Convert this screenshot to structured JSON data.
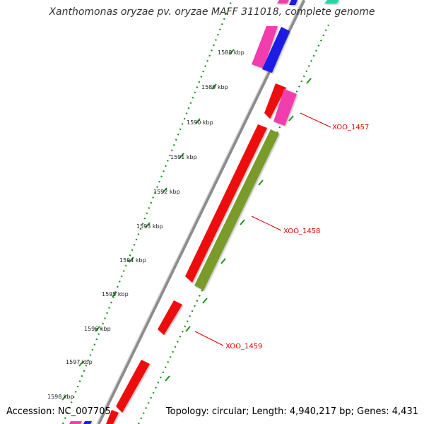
{
  "title": "Xanthomonas oryzae pv. oryzae MAFF 311018, complete genome",
  "footer": {
    "accession": "Accession: NC_007705",
    "summary": "Topology: circular; Length: 4,940,217 bp; Genes: 4,431"
  },
  "colors": {
    "backbone": "#8c8c8c",
    "dotted_track": "#1f8f1f",
    "label_red": "#dd0000",
    "red": "#ee1111",
    "blue": "#1a1ae6",
    "magenta": "#f23cae",
    "olive": "#7a9a2a",
    "teal": "#22d6a8"
  },
  "ticks": [
    {
      "label": "1588 kbp"
    },
    {
      "label": "1589 kbp"
    },
    {
      "label": "1590 kbp"
    },
    {
      "label": "1591 kbp"
    },
    {
      "label": "1592 kbp"
    },
    {
      "label": "1593 kbp"
    },
    {
      "label": "1594 kbp"
    },
    {
      "label": "1595 kbp"
    },
    {
      "label": "1596 kbp"
    },
    {
      "label": "1597 kbp"
    },
    {
      "label": "1598 kbp"
    }
  ],
  "features": [
    {
      "name": "cds-top-magenta",
      "color": "magenta"
    },
    {
      "name": "cds-top-blue",
      "color": "blue"
    },
    {
      "name": "cds-top-teal",
      "color": "teal"
    },
    {
      "name": "cds-red-1589",
      "color": "red"
    },
    {
      "name": "cds-magenta-1589",
      "color": "magenta"
    },
    {
      "name": "cds-xoo-1458",
      "color": "red"
    },
    {
      "name": "cds-olive-1590",
      "color": "olive"
    },
    {
      "name": "cds-xoo-1459",
      "color": "red"
    },
    {
      "name": "cds-red-1597",
      "color": "red"
    },
    {
      "name": "cds-bottom-magenta",
      "color": "magenta"
    },
    {
      "name": "cds-bottom-blue",
      "color": "blue"
    }
  ],
  "gene_labels": [
    {
      "text": "XOO_1457"
    },
    {
      "text": "XOO_1458"
    },
    {
      "text": "XOO_1459"
    }
  ]
}
